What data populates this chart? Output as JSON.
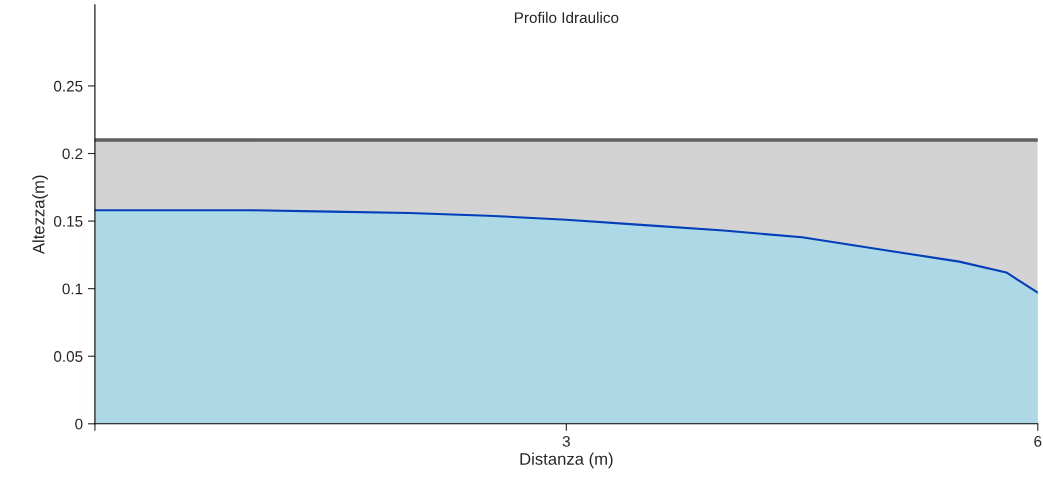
{
  "chart_data": {
    "type": "area",
    "title": "Profilo Idraulico",
    "xlabel": "Distanza (m)",
    "ylabel": "Altezza(m)",
    "x": [
      0,
      0.5,
      1,
      1.5,
      2,
      2.5,
      3,
      3.5,
      4,
      4.5,
      5,
      5.5,
      5.8,
      6
    ],
    "series": [
      {
        "color": "#d3d3d3",
        "values": [
          0.21,
          0.21,
          0.21,
          0.21,
          0.21,
          0.21,
          0.21,
          0.21,
          0.21,
          0.21,
          0.21,
          0.21,
          0.21,
          0.21
        ]
      },
      {
        "color": "#add8e6",
        "values": [
          0.158,
          0.158,
          0.158,
          0.157,
          0.156,
          0.154,
          0.151,
          0.147,
          0.143,
          0.138,
          0.129,
          0.12,
          0.112,
          0.097
        ]
      }
    ],
    "xlim": [
      0,
      6
    ],
    "xticks": [
      {
        "value": 0,
        "label": null
      },
      3,
      6
    ],
    "ylim": [
      0,
      0.31
    ],
    "yticks": [
      0,
      0.05,
      0.1,
      0.15,
      0.2,
      0.25
    ],
    "grid": false,
    "legend": false
  }
}
